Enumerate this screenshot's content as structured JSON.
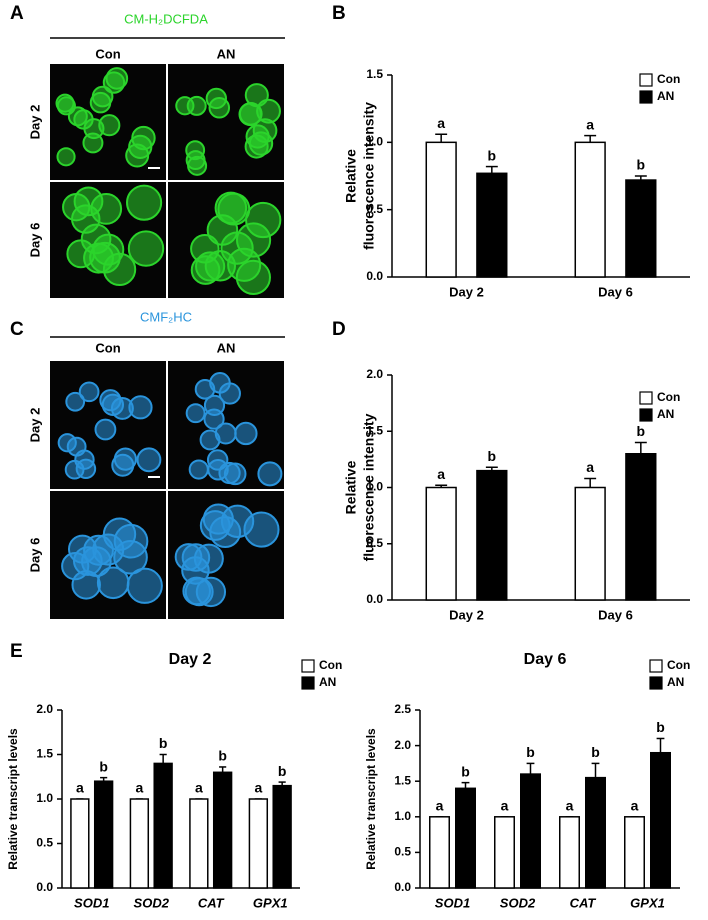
{
  "panel_labels": [
    "A",
    "B",
    "C",
    "D",
    "E"
  ],
  "image_panels": [
    {
      "title": "CM-H₂DCFDA",
      "color": "#2bd42b",
      "columns": [
        "Con",
        "AN"
      ],
      "rows": [
        "Day 2",
        "Day 6"
      ]
    },
    {
      "title": "CMF₂HC",
      "color": "#2a94dc",
      "columns": [
        "Con",
        "AN"
      ],
      "rows": [
        "Day 2",
        "Day 6"
      ]
    }
  ],
  "chart_data": [
    {
      "type": "bar",
      "ylabel": [
        "Relative",
        "fluorescence intensity"
      ],
      "categories": [
        "Day 2",
        "Day 6"
      ],
      "series": [
        {
          "name": "Con",
          "color": "#ffffff",
          "values": [
            1.0,
            1.0
          ],
          "errors": [
            0.06,
            0.05
          ],
          "letters": [
            "a",
            "a"
          ]
        },
        {
          "name": "AN",
          "color": "#000000",
          "values": [
            0.77,
            0.72
          ],
          "errors": [
            0.05,
            0.03
          ],
          "letters": [
            "b",
            "b"
          ]
        }
      ],
      "ylim": [
        0,
        1.5
      ],
      "yticks": [
        {
          "value": 0,
          "label": "0.0"
        },
        0.5,
        {
          "value": 1,
          "label": "1.0"
        },
        1.5
      ],
      "legend": "upper right"
    },
    {
      "type": "bar",
      "ylabel": [
        "Relative",
        "fluorescence intensity"
      ],
      "categories": [
        "Day 2",
        "Day 6"
      ],
      "series": [
        {
          "name": "Con",
          "color": "#ffffff",
          "values": [
            1.0,
            1.0
          ],
          "errors": [
            0.02,
            0.08
          ],
          "letters": [
            "a",
            "a"
          ]
        },
        {
          "name": "AN",
          "color": "#000000",
          "values": [
            1.15,
            1.3
          ],
          "errors": [
            0.03,
            0.1
          ],
          "letters": [
            "b",
            "b"
          ]
        }
      ],
      "ylim": [
        0,
        2
      ],
      "yticks": [
        {
          "value": 0,
          "label": "0.0"
        },
        0.5,
        {
          "value": 1,
          "label": "1.0"
        },
        1.5,
        {
          "value": 2,
          "label": "2.0"
        }
      ],
      "legend": "upper right"
    },
    {
      "type": "bar",
      "title": "Day 2",
      "ylabel": "Relative transcript levels",
      "categories": [
        "SOD1",
        "SOD2",
        "CAT",
        "GPX1"
      ],
      "italic_categories": true,
      "series": [
        {
          "name": "Con",
          "color": "#ffffff",
          "values": [
            1,
            1,
            1,
            1
          ],
          "errors": [
            0,
            0,
            0,
            0
          ],
          "letters": [
            "a",
            "a",
            "a",
            "a"
          ]
        },
        {
          "name": "AN",
          "color": "#000000",
          "values": [
            1.2,
            1.4,
            1.3,
            1.15
          ],
          "errors": [
            0.04,
            0.1,
            0.06,
            0.04
          ],
          "letters": [
            "b",
            "b",
            "b",
            "b"
          ]
        }
      ],
      "ylim": [
        0,
        2
      ],
      "yticks": [
        {
          "value": 0,
          "label": "0.0"
        },
        0.5,
        {
          "value": 1,
          "label": "1.0"
        },
        1.5,
        {
          "value": 2,
          "label": "2.0"
        }
      ],
      "legend": "upper right"
    },
    {
      "type": "bar",
      "title": "Day 6",
      "ylabel": "Relative transcript levels",
      "categories": [
        "SOD1",
        "SOD2",
        "CAT",
        "GPX1"
      ],
      "italic_categories": true,
      "series": [
        {
          "name": "Con",
          "color": "#ffffff",
          "values": [
            1,
            1,
            1,
            1
          ],
          "errors": [
            0,
            0,
            0,
            0
          ],
          "letters": [
            "a",
            "a",
            "a",
            "a"
          ]
        },
        {
          "name": "AN",
          "color": "#000000",
          "values": [
            1.4,
            1.6,
            1.55,
            1.9
          ],
          "errors": [
            0.08,
            0.15,
            0.2,
            0.2
          ],
          "letters": [
            "b",
            "b",
            "b",
            "b"
          ]
        }
      ],
      "ylim": [
        0,
        2.5
      ],
      "yticks": [
        {
          "value": 0,
          "label": "0.0"
        },
        0.5,
        {
          "value": 1,
          "label": "1.0"
        },
        1.5,
        {
          "value": 2,
          "label": "2.0"
        },
        2.5
      ],
      "legend": "upper right"
    }
  ]
}
